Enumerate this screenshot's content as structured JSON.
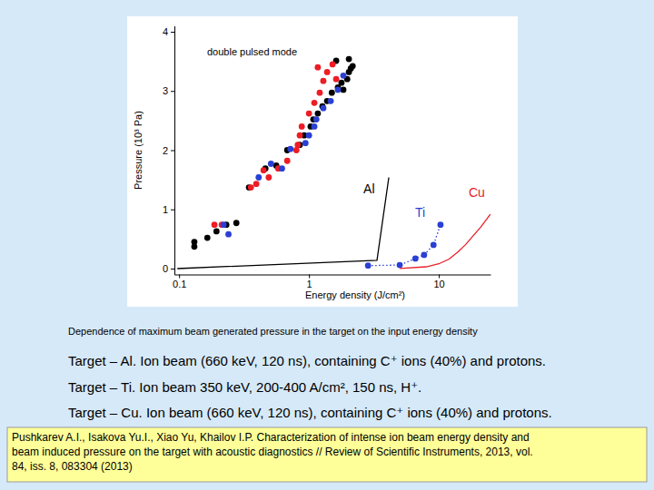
{
  "chart_data": {
    "type": "scatter",
    "x_label": "Energy density (J/cm²)",
    "y_label": "Pressure (10³ Pa)",
    "log": "x",
    "grid": false,
    "xlim": [
      0.092,
      25
    ],
    "xticks": [
      0.1,
      1,
      10
    ],
    "ylim": [
      -0.1,
      4.1
    ],
    "yticks": [
      0,
      1,
      2,
      3,
      4
    ],
    "annotations": [
      "double pulsed mode"
    ],
    "series": [
      {
        "type": "scatter",
        "marker": "circle",
        "color": "#000000",
        "x": [
          0.131,
          0.131,
          0.165,
          0.194,
          0.231,
          0.276,
          0.345,
          0.462,
          0.56,
          0.68,
          0.85,
          0.92,
          1.03,
          1.08,
          1.17,
          1.27,
          1.38,
          1.5,
          1.62,
          1.67,
          1.78,
          1.84,
          1.97,
          2.03,
          2.03,
          2.1,
          2.17
        ],
        "values": [
          0.37,
          0.45,
          0.52,
          0.63,
          0.74,
          0.77,
          1.37,
          1.69,
          1.74,
          2.0,
          2.09,
          2.25,
          2.4,
          2.52,
          2.62,
          2.74,
          2.83,
          2.97,
          3.51,
          3.06,
          3.14,
          3.02,
          3.2,
          3.32,
          3.54,
          3.38,
          3.42
        ]
      },
      {
        "type": "scatter",
        "marker": "circle",
        "color": "#ee1c25",
        "x": [
          0.187,
          0.213,
          0.357,
          0.393,
          0.447,
          0.49,
          0.58,
          0.68,
          0.8,
          0.82,
          0.85,
          0.88,
          1.0,
          1.1,
          1.17,
          1.21,
          1.29,
          1.38,
          1.52,
          1.62
        ],
        "values": [
          0.74,
          0.74,
          1.37,
          1.43,
          1.66,
          1.54,
          1.69,
          1.82,
          2.0,
          2.09,
          2.25,
          2.4,
          2.62,
          2.8,
          3.4,
          2.97,
          3.17,
          3.32,
          3.45,
          3.2
        ]
      },
      {
        "type": "scatter",
        "marker": "circle",
        "color": "#2a3fd4",
        "x": [
          0.22,
          0.24,
          0.41,
          0.51,
          0.62,
          0.72,
          0.94,
          1.0,
          1.1,
          1.14,
          1.29,
          1.47,
          1.67,
          1.84
        ],
        "values": [
          0.74,
          0.58,
          1.54,
          1.77,
          1.69,
          2.02,
          2.12,
          2.25,
          2.4,
          2.52,
          2.71,
          2.83,
          3.02,
          3.26
        ]
      },
      {
        "name": "Al",
        "type": "line",
        "line_style": "solid",
        "color": "#000000",
        "x": [
          0.097,
          3.34,
          4.12
        ],
        "values": [
          0,
          0.14,
          1.54
        ]
      },
      {
        "name": "Ti",
        "type": "line",
        "line_style": "dotted",
        "marker": "circle",
        "color": "#2a3fd4",
        "x": [
          2.85,
          5.0,
          6.6,
          7.7,
          9.1,
          10.3
        ],
        "values": [
          0.05,
          0.06,
          0.17,
          0.23,
          0.4,
          0.74
        ]
      },
      {
        "name": "Cu",
        "type": "line",
        "line_style": "solid",
        "color": "#e8202a",
        "x": [
          5,
          8,
          10,
          12,
          14,
          16,
          18,
          21,
          25
        ],
        "values": [
          0,
          0.03,
          0.08,
          0.16,
          0.28,
          0.4,
          0.53,
          0.7,
          0.92
        ]
      }
    ]
  },
  "caption": "Dependence of maximum beam generated pressure in the target on the input energy density",
  "notes": [
    "Target – Al. Ion beam (660 keV, 120 ns), containing C⁺ ions (40%) and protons.",
    "Target – Ti. Ion beam 350 keV, 200-400 A/cm², 150 ns, H⁺.",
    "Target – Cu. Ion beam (660 keV, 120 ns), containing C⁺ ions (40%) and protons."
  ],
  "reference": [
    "Pushkarev A.I., Isakova Yu.I., Xiao Yu, Khailov I.P. Characterization of intense ion beam energy density and",
    "beam induced pressure on the target with acoustic diagnostics // Review of Scientific Instruments, 2013,  vol.",
    "84, iss. 8, 083304 (2013)"
  ]
}
